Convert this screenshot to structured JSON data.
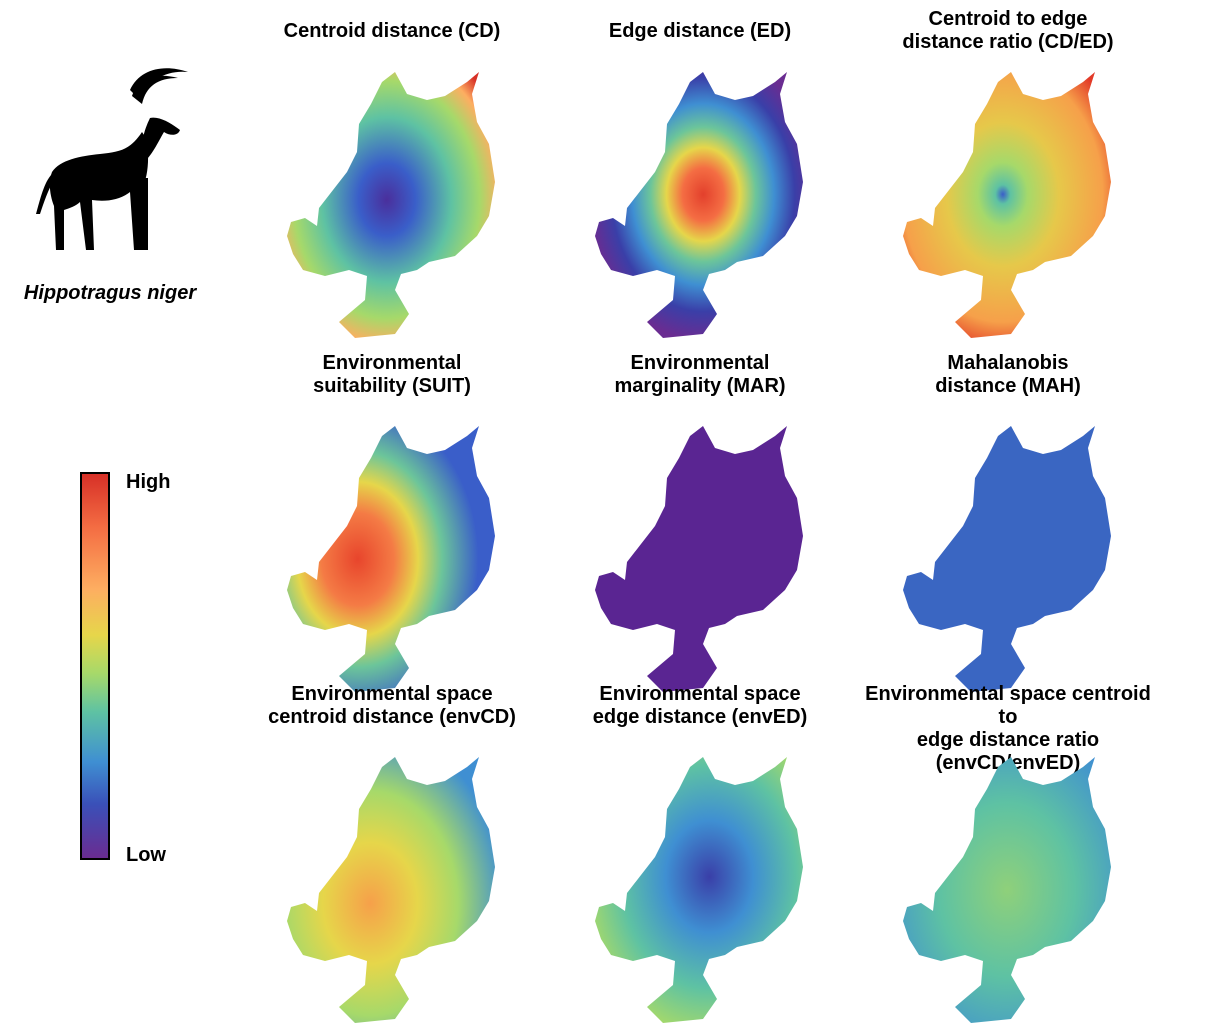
{
  "species": {
    "name": "Hippotragus niger",
    "icon": "sable-antelope-silhouette-icon"
  },
  "legend": {
    "high_label": "High",
    "low_label": "Low",
    "colors": [
      "#d73027",
      "#f46d43",
      "#fdae61",
      "#e6d64a",
      "#a6d96a",
      "#5ec2a3",
      "#3f8fd2",
      "#3a50b8",
      "#6a2c91"
    ]
  },
  "panels": [
    {
      "title": "Centroid distance (CD)"
    },
    {
      "title": "Edge distance (ED)"
    },
    {
      "title": "Centroid to edge\ndistance ratio (CD/ED)"
    },
    {
      "title": "Environmental\nsuitability (SUIT)"
    },
    {
      "title": "Environmental\nmarginality (MAR)"
    },
    {
      "title": "Mahalanobis\ndistance (MAH)"
    },
    {
      "title": "Environmental space\ncentroid distance (envCD)"
    },
    {
      "title": "Environmental space\nedge distance (envED)"
    },
    {
      "title": "Environmental space centroid to\nedge distance ratio (envCD/envED)"
    }
  ]
}
